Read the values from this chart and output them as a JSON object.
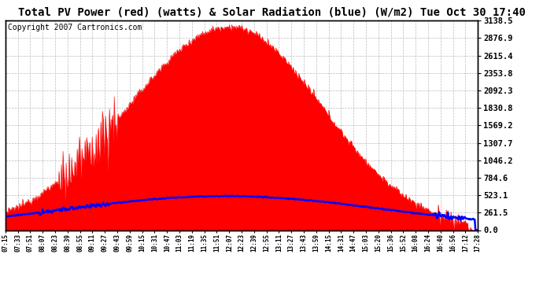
{
  "title": "Total PV Power (red) (watts) & Solar Radiation (blue) (W/m2) Tue Oct 30 17:40",
  "copyright_text": "Copyright 2007 Cartronics.com",
  "y_max": 3138.5,
  "y_ticks": [
    0.0,
    261.5,
    523.1,
    784.6,
    1046.2,
    1307.7,
    1569.2,
    1830.8,
    2092.3,
    2353.8,
    2615.4,
    2876.9,
    3138.5
  ],
  "x_labels": [
    "07:15",
    "07:33",
    "07:51",
    "08:07",
    "08:23",
    "08:39",
    "08:55",
    "09:11",
    "09:27",
    "09:43",
    "09:59",
    "10:15",
    "10:31",
    "10:47",
    "11:03",
    "11:19",
    "11:35",
    "11:51",
    "12:07",
    "12:23",
    "12:39",
    "12:55",
    "13:11",
    "13:27",
    "13:43",
    "13:59",
    "14:15",
    "14:31",
    "14:47",
    "15:03",
    "15:20",
    "15:36",
    "15:52",
    "16:08",
    "16:24",
    "16:40",
    "16:56",
    "17:12",
    "17:28"
  ],
  "background_color": "#ffffff",
  "grid_color": "#aaaaaa",
  "pv_color": "#ff0000",
  "solar_color": "#0000ff",
  "title_fontsize": 10,
  "copyright_fontsize": 7,
  "figwidth": 6.9,
  "figheight": 3.75,
  "pv_peak": 3050,
  "pv_noon_hour": 12.1,
  "pv_rise_hour": 7.5,
  "pv_set_hour": 17.35,
  "solar_peak": 510,
  "solar_noon_hour": 12.0
}
